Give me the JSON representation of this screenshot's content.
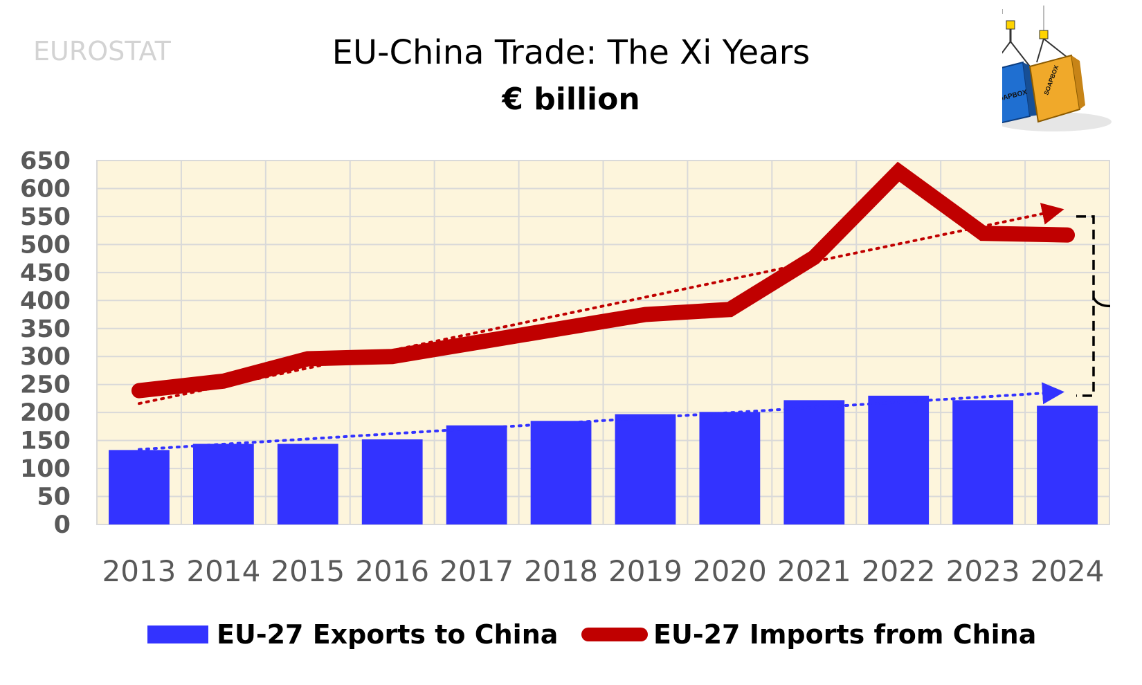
{
  "header": {
    "source": "EUROSTAT",
    "title": "EU-China Trade: The Xi Years",
    "subtitle": "€ billion"
  },
  "logo": {
    "text": "SOAPBOX",
    "icon": "shipping-containers-icon"
  },
  "colors": {
    "plot_bg": "#fdf5dc",
    "grid": "#d9d9d9",
    "exports": "#3333ff",
    "imports": "#c00000",
    "axis_text": "#595959"
  },
  "chart_data": {
    "type": "bar",
    "categories": [
      "2013",
      "2014",
      "2015",
      "2016",
      "2017",
      "2018",
      "2019",
      "2020",
      "2021",
      "2022",
      "2023",
      "2024"
    ],
    "series": [
      {
        "name": "EU-27 Exports to China",
        "type": "bar",
        "values": [
          133,
          144,
          144,
          152,
          177,
          185,
          197,
          201,
          222,
          230,
          222,
          212
        ]
      },
      {
        "name": "EU-27 Imports from China",
        "type": "line",
        "values": [
          239,
          256,
          296,
          300,
          325,
          350,
          375,
          384,
          477,
          630,
          520,
          517
        ]
      }
    ],
    "trendlines": [
      {
        "series": "EU-27 Imports from China",
        "style": "dotted-arrow",
        "from": 216,
        "to": 557
      },
      {
        "series": "EU-27 Exports to China",
        "style": "dotted-arrow",
        "from": 134,
        "to": 235
      }
    ],
    "annotations": [
      {
        "type": "bracket",
        "from": 230,
        "to": 550,
        "side": "right"
      }
    ],
    "ylim": [
      0,
      650
    ],
    "yticks": [
      0,
      50,
      100,
      150,
      200,
      250,
      300,
      350,
      400,
      450,
      500,
      550,
      600,
      650
    ],
    "grid": true,
    "legend_position": "bottom"
  }
}
